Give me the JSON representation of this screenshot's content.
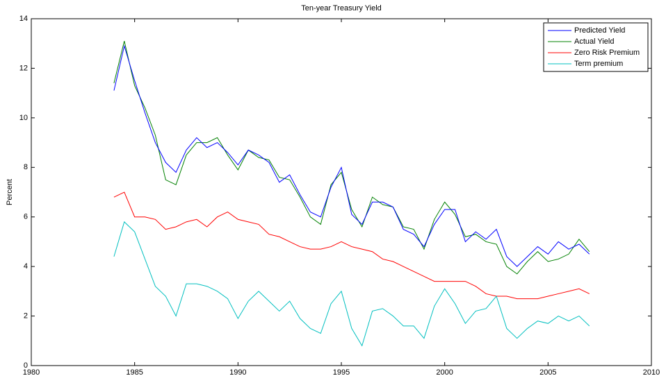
{
  "chart_data": {
    "type": "line",
    "title": "Ten-year Treasury Yield",
    "y_label": "Percent",
    "x": [
      1984,
      1984.5,
      1985,
      1985.5,
      1986,
      1986.5,
      1987,
      1987.5,
      1988,
      1988.5,
      1989,
      1989.5,
      1990,
      1990.5,
      1991,
      1991.5,
      1992,
      1992.5,
      1993,
      1993.5,
      1994,
      1994.5,
      1995,
      1995.5,
      1996,
      1996.5,
      1997,
      1997.5,
      1998,
      1998.5,
      1999,
      1999.5,
      2000,
      2000.5,
      2001,
      2001.5,
      2002,
      2002.5,
      2003,
      2003.5,
      2004,
      2004.5,
      2005,
      2005.5,
      2006,
      2006.5,
      2007
    ],
    "series": [
      {
        "name": "Predicted Yield",
        "color": "#0000ff",
        "values": [
          11.1,
          12.9,
          11.5,
          10.2,
          9.0,
          8.2,
          7.8,
          8.7,
          9.2,
          8.8,
          9.0,
          8.6,
          8.1,
          8.7,
          8.5,
          8.2,
          7.4,
          7.7,
          6.9,
          6.2,
          6.0,
          7.2,
          8.0,
          6.1,
          5.7,
          6.6,
          6.6,
          6.4,
          5.5,
          5.3,
          4.8,
          5.7,
          6.3,
          6.3,
          5.0,
          5.4,
          5.1,
          5.5,
          4.4,
          4.0,
          4.4,
          4.8,
          4.5,
          5.0,
          4.7,
          4.9,
          4.5
        ]
      },
      {
        "name": "Actual Yield",
        "color": "#008000",
        "values": [
          11.4,
          13.1,
          11.3,
          10.4,
          9.3,
          7.5,
          7.3,
          8.5,
          9.0,
          9.0,
          9.2,
          8.5,
          7.9,
          8.7,
          8.4,
          8.3,
          7.6,
          7.5,
          6.8,
          6.0,
          5.7,
          7.3,
          7.8,
          6.3,
          5.6,
          6.8,
          6.5,
          6.4,
          5.6,
          5.5,
          4.7,
          5.9,
          6.6,
          6.1,
          5.2,
          5.3,
          5.0,
          4.9,
          4.0,
          3.7,
          4.2,
          4.6,
          4.2,
          4.3,
          4.5,
          5.1,
          4.6
        ]
      },
      {
        "name": "Zero Risk Premium",
        "color": "#ff0000",
        "values": [
          6.8,
          7.0,
          6.0,
          6.0,
          5.9,
          5.5,
          5.6,
          5.8,
          5.9,
          5.6,
          6.0,
          6.2,
          5.9,
          5.8,
          5.7,
          5.3,
          5.2,
          5.0,
          4.8,
          4.7,
          4.7,
          4.8,
          5.0,
          4.8,
          4.7,
          4.6,
          4.3,
          4.2,
          4.0,
          3.8,
          3.6,
          3.4,
          3.4,
          3.4,
          3.4,
          3.2,
          2.9,
          2.8,
          2.8,
          2.7,
          2.7,
          2.7,
          2.8,
          2.9,
          3.0,
          3.1,
          2.9
        ]
      },
      {
        "name": "Term premium",
        "color": "#00bfbf",
        "values": [
          4.4,
          5.8,
          5.4,
          4.3,
          3.2,
          2.8,
          2.0,
          3.3,
          3.3,
          3.2,
          3.0,
          2.7,
          1.9,
          2.6,
          3.0,
          2.6,
          2.2,
          2.6,
          1.9,
          1.5,
          1.3,
          2.5,
          3.0,
          1.5,
          0.8,
          2.2,
          2.3,
          2.0,
          1.6,
          1.6,
          1.1,
          2.4,
          3.1,
          2.5,
          1.7,
          2.2,
          2.3,
          2.8,
          1.5,
          1.1,
          1.5,
          1.8,
          1.7,
          2.0,
          1.8,
          2.0,
          1.6
        ]
      }
    ],
    "xlim": [
      1980,
      2010
    ],
    "xticks": [
      1980,
      1985,
      1990,
      1995,
      2000,
      2005,
      2010
    ],
    "ylim": [
      0,
      14
    ],
    "yticks": [
      0,
      2,
      4,
      6,
      8,
      10,
      12,
      14
    ],
    "legend": "top-right"
  }
}
